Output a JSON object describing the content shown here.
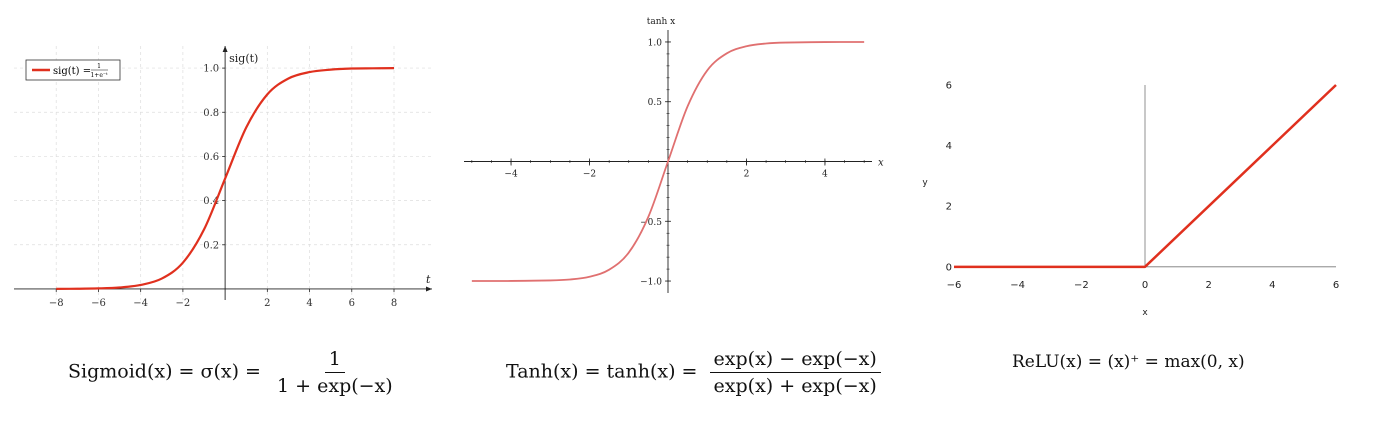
{
  "chart_data": [
    {
      "type": "line",
      "function": "sigmoid",
      "ylabel": "sig(t)",
      "xlabel": "t",
      "legend": "sig(t) = 1/(1+e^−t)",
      "legend_placement": "top-left",
      "grid": true,
      "xlim": [
        -10,
        9.8
      ],
      "ylim": [
        -0.05,
        1.1
      ],
      "xticks": [
        -8,
        -6,
        -4,
        -2,
        2,
        4,
        6,
        8
      ],
      "yticks": [
        0.2,
        0.4,
        0.6,
        0.8,
        1.0
      ],
      "xtick_labels": [
        "−8",
        "−6",
        "−4",
        "−2",
        "2",
        "4",
        "6",
        "8"
      ],
      "ytick_labels": [
        "0.2",
        "0.4",
        "0.6",
        "0.8",
        "1.0"
      ],
      "series": [
        {
          "color": "#e0301e",
          "x": [
            -8,
            -7,
            -6,
            -5,
            -4,
            -3,
            -2,
            -1,
            0,
            1,
            2,
            3,
            4,
            5,
            6,
            7,
            8
          ],
          "y": [
            0.0003,
            0.0009,
            0.0025,
            0.0067,
            0.018,
            0.047,
            0.119,
            0.269,
            0.5,
            0.731,
            0.881,
            0.953,
            0.982,
            0.993,
            0.998,
            0.999,
            1.0
          ]
        }
      ]
    },
    {
      "type": "line",
      "function": "tanh",
      "ylabel": "tanh x",
      "xlabel": "x",
      "grid": false,
      "xlim": [
        -5.2,
        5.2
      ],
      "ylim": [
        -1.1,
        1.1
      ],
      "xticks": [
        -4,
        -2,
        2,
        4
      ],
      "yticks": [
        -1.0,
        -0.5,
        0.5,
        1.0
      ],
      "xtick_labels": [
        "−4",
        "−2",
        "2",
        "4"
      ],
      "ytick_labels": [
        "−1.0",
        "−0.5",
        "0.5",
        "1.0"
      ],
      "series": [
        {
          "color": "#e07070",
          "x": [
            -5,
            -4,
            -3,
            -2.5,
            -2,
            -1.5,
            -1,
            -0.5,
            0,
            0.5,
            1,
            1.5,
            2,
            2.5,
            3,
            4,
            5
          ],
          "y": [
            -0.9999,
            -0.9993,
            -0.995,
            -0.987,
            -0.964,
            -0.905,
            -0.762,
            -0.462,
            0,
            0.462,
            0.762,
            0.905,
            0.964,
            0.987,
            0.995,
            0.9993,
            0.9999
          ]
        }
      ]
    },
    {
      "type": "line",
      "function": "relu",
      "ylabel": "y",
      "xlabel": "x",
      "grid": false,
      "xlim": [
        -6,
        6
      ],
      "ylim": [
        -0.6,
        6
      ],
      "xticks": [
        -6,
        -4,
        -2,
        0,
        2,
        4,
        6
      ],
      "yticks": [
        0,
        2,
        4,
        6
      ],
      "xtick_labels": [
        "−6",
        "−4",
        "−2",
        "0",
        "2",
        "4",
        "6"
      ],
      "ytick_labels": [
        "0",
        "2",
        "4",
        "6"
      ],
      "series": [
        {
          "color": "#e0301e",
          "x": [
            -6,
            0,
            6
          ],
          "y": [
            0,
            0,
            6
          ]
        }
      ]
    }
  ],
  "formulas": {
    "sigmoid_lhs": "Sigmoid(x) = σ(x) =",
    "sigmoid_num": "1",
    "sigmoid_den": "1 + exp(−x)",
    "tanh_lhs": "Tanh(x) = tanh(x) =",
    "tanh_num": "exp(x) − exp(−x)",
    "tanh_den": "exp(x) + exp(−x)",
    "relu": "ReLU(x) = (x)⁺ = max(0, x)"
  },
  "legend_text": {
    "lhs": "sig(t) =",
    "num": "1",
    "den": "1+e⁻ᵗ"
  }
}
